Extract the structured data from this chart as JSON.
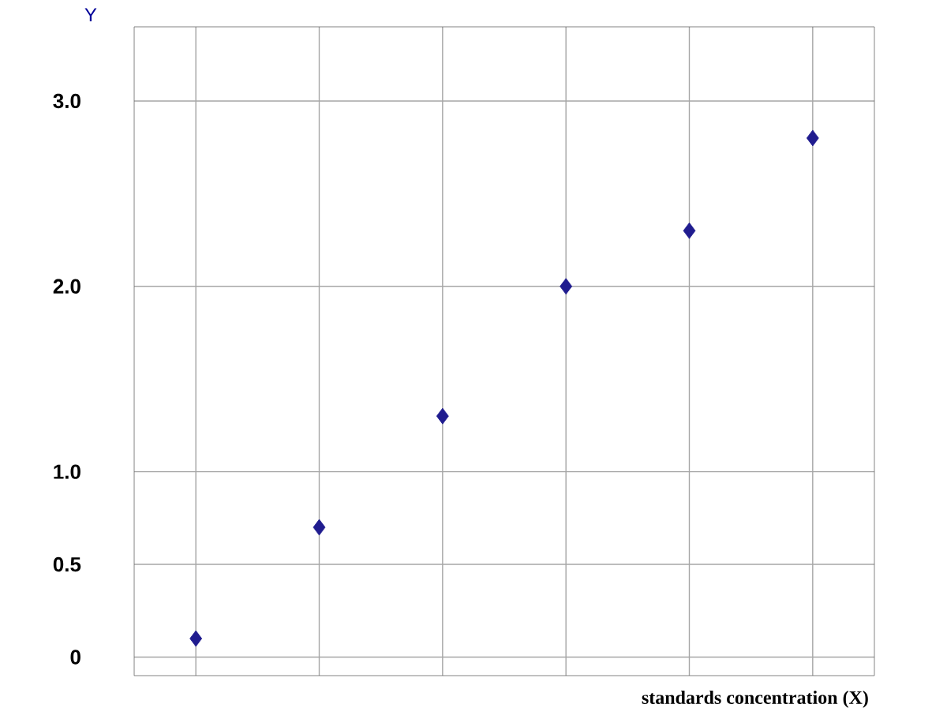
{
  "chart_data": {
    "type": "scatter",
    "xlabel": "standards concentration (X)",
    "ylabel": "Y",
    "categories": [
      null,
      null,
      null,
      null,
      null,
      null
    ],
    "series": [
      {
        "color": "#201c8f",
        "values": [
          0.1,
          0.7,
          1.3,
          2.0,
          2.3,
          2.8
        ]
      }
    ],
    "ylim": [
      -0.1,
      3.4
    ],
    "yticks": [
      0,
      0.5,
      {
        "value": 1,
        "label": "1.0"
      },
      {
        "value": 2,
        "label": "2.0"
      },
      {
        "value": 3,
        "label": "3.0"
      }
    ],
    "grid": true,
    "marker": "diamond",
    "tick_labels": "y"
  }
}
